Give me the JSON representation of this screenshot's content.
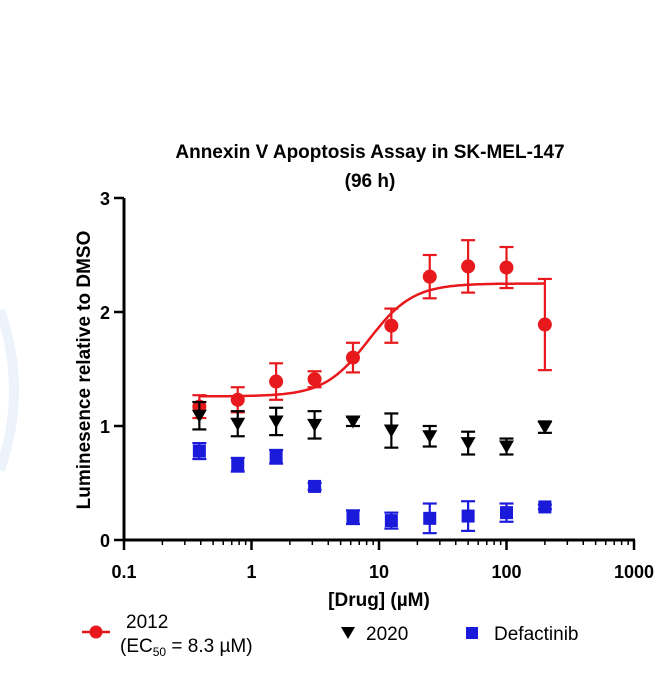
{
  "chart_data": {
    "type": "scatter",
    "title": "Annexin V Apoptosis Assay in SK-MEL-147",
    "subtitle": "(96 h)",
    "xlabel": "[Drug] (µM)",
    "ylabel": "Luminesence relative to DMSO",
    "x_scale": "log",
    "xlim": [
      0.1,
      1000
    ],
    "ylim": [
      0,
      3
    ],
    "x_ticks": [
      0.1,
      1,
      10,
      100,
      1000
    ],
    "x_tick_labels": [
      "0.1",
      "1",
      "10",
      "100",
      "1000"
    ],
    "y_ticks": [
      0,
      1,
      2,
      3
    ],
    "y_tick_labels": [
      "0",
      "1",
      "2",
      "3"
    ],
    "legend_position": "bottom",
    "series": [
      {
        "name": "2012",
        "color": "#e8191c",
        "marker": "circle",
        "x": [
          0.39,
          0.78,
          1.56,
          3.125,
          6.25,
          12.5,
          25,
          50,
          100,
          200
        ],
        "y": [
          1.17,
          1.23,
          1.39,
          1.41,
          1.6,
          1.88,
          2.31,
          2.4,
          2.39,
          1.89
        ],
        "err": [
          0.1,
          0.11,
          0.16,
          0.07,
          0.13,
          0.15,
          0.19,
          0.23,
          0.18,
          0.4
        ],
        "fit": {
          "bottom": 1.26,
          "top": 2.25,
          "ec50": 8.3,
          "hill": 2.5
        }
      },
      {
        "name": "2020",
        "color": "#000000",
        "marker": "triangle-down",
        "x": [
          0.39,
          0.78,
          1.56,
          3.125,
          6.25,
          12.5,
          25,
          50,
          100,
          200
        ],
        "y": [
          1.09,
          1.02,
          1.04,
          1.01,
          1.04,
          0.96,
          0.91,
          0.85,
          0.82,
          0.99
        ],
        "err": [
          0.12,
          0.11,
          0.12,
          0.12,
          0.04,
          0.15,
          0.09,
          0.1,
          0.07,
          0.05
        ]
      },
      {
        "name": "Defactinib",
        "color": "#1a1adb",
        "marker": "square",
        "x": [
          0.39,
          0.78,
          1.56,
          3.125,
          6.25,
          12.5,
          25,
          50,
          100,
          200
        ],
        "y": [
          0.78,
          0.66,
          0.73,
          0.47,
          0.2,
          0.17,
          0.19,
          0.21,
          0.24,
          0.29
        ],
        "err": [
          0.07,
          0.06,
          0.06,
          0.03,
          0.06,
          0.07,
          0.13,
          0.13,
          0.08,
          0.02
        ]
      }
    ],
    "legend": {
      "entry1_label": "2012",
      "entry1_sub_open": "(EC",
      "entry1_sub_subscript": "50",
      "entry1_sub_close": " = 8.3 µM)",
      "entry2_label": "2020",
      "entry3_label": "Defactinib"
    }
  }
}
